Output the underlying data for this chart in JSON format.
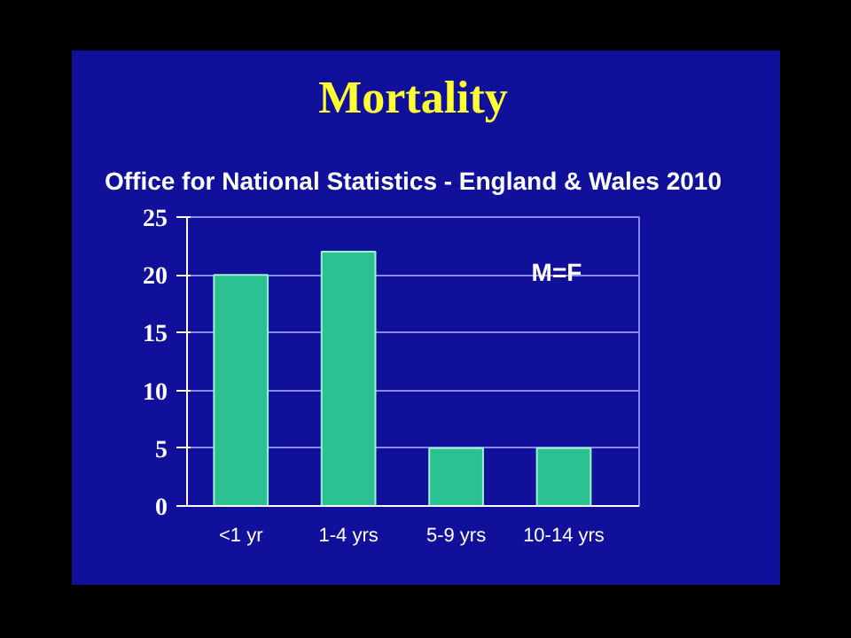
{
  "chart_data": {
    "type": "bar",
    "title": "Mortality",
    "subtitle": "Office for National Statistics - England & Wales 2010",
    "categories": [
      "<1 yr",
      "1-4 yrs",
      "5-9 yrs",
      "10-14 yrs"
    ],
    "values": [
      20,
      22,
      5,
      5
    ],
    "color": "#2cc193",
    "ylim": [
      0,
      25
    ],
    "yticks": [
      0,
      5,
      10,
      15,
      20,
      25
    ],
    "grid": "y",
    "annotations": [
      "M=F"
    ]
  }
}
